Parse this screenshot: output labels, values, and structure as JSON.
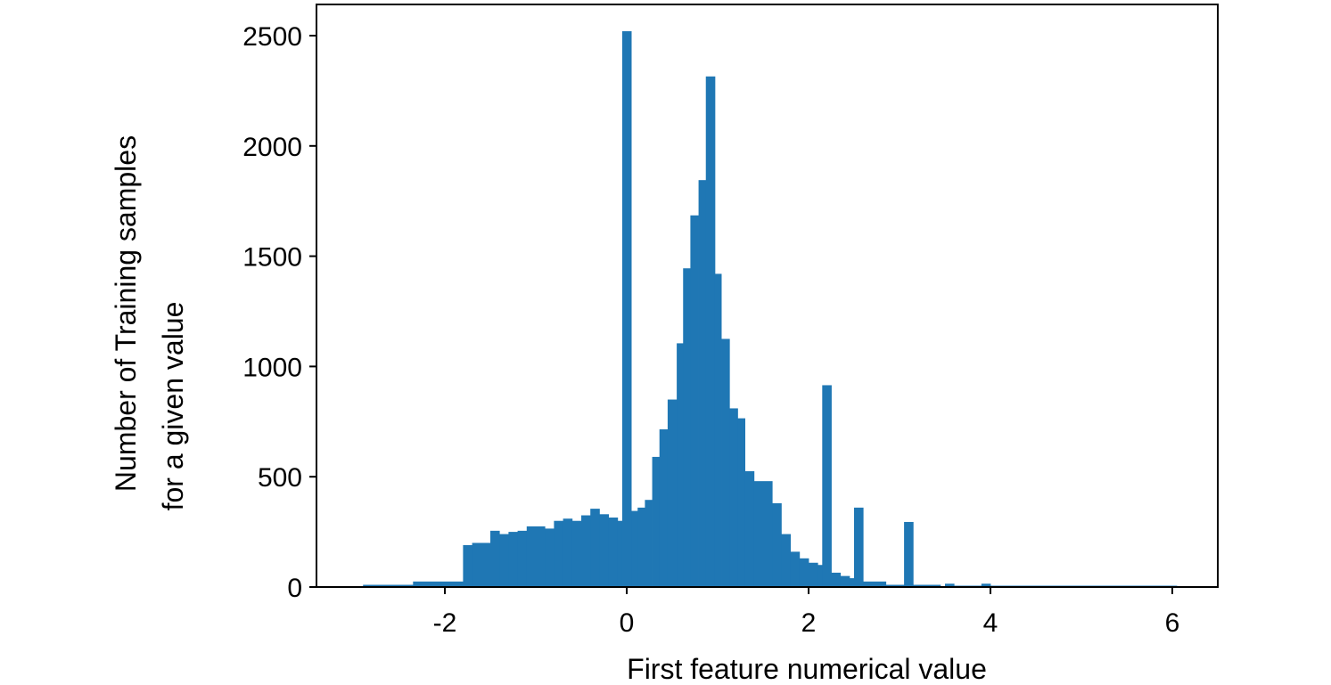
{
  "chart_data": {
    "type": "bar",
    "title": "",
    "xlabel": "First feature numerical value",
    "ylabel_lines": [
      "Number of Training samples",
      "for a given value"
    ],
    "xlim": [
      -3.4,
      6.5
    ],
    "ylim": [
      0,
      2500
    ],
    "xticks": [
      "-2",
      "0",
      "2",
      "4",
      "6"
    ],
    "xtick_values": [
      -2,
      0,
      2,
      4,
      6
    ],
    "yticks": [
      "0",
      "500",
      "1000",
      "1500",
      "2000",
      "2500"
    ],
    "ytick_values": [
      0,
      500,
      1000,
      1500,
      2000,
      2500
    ],
    "grid": false,
    "bar_color": "#1f77b4",
    "bins": [
      {
        "x0": -2.9,
        "x1": -2.35,
        "value": 10
      },
      {
        "x0": -2.35,
        "x1": -1.8,
        "value": 25
      },
      {
        "x0": -1.8,
        "x1": -1.7,
        "value": 190
      },
      {
        "x0": -1.7,
        "x1": -1.5,
        "value": 200
      },
      {
        "x0": -1.5,
        "x1": -1.4,
        "value": 255
      },
      {
        "x0": -1.4,
        "x1": -1.3,
        "value": 240
      },
      {
        "x0": -1.3,
        "x1": -1.2,
        "value": 250
      },
      {
        "x0": -1.2,
        "x1": -1.1,
        "value": 255
      },
      {
        "x0": -1.1,
        "x1": -0.9,
        "value": 275
      },
      {
        "x0": -0.9,
        "x1": -0.8,
        "value": 265
      },
      {
        "x0": -0.8,
        "x1": -0.7,
        "value": 300
      },
      {
        "x0": -0.7,
        "x1": -0.6,
        "value": 310
      },
      {
        "x0": -0.6,
        "x1": -0.5,
        "value": 300
      },
      {
        "x0": -0.5,
        "x1": -0.4,
        "value": 325
      },
      {
        "x0": -0.4,
        "x1": -0.3,
        "value": 355
      },
      {
        "x0": -0.3,
        "x1": -0.2,
        "value": 330
      },
      {
        "x0": -0.2,
        "x1": -0.1,
        "value": 315
      },
      {
        "x0": -0.1,
        "x1": -0.05,
        "value": 300
      },
      {
        "x0": -0.05,
        "x1": 0.05,
        "value": 2520
      },
      {
        "x0": 0.05,
        "x1": 0.12,
        "value": 345
      },
      {
        "x0": 0.12,
        "x1": 0.2,
        "value": 360
      },
      {
        "x0": 0.2,
        "x1": 0.28,
        "value": 395
      },
      {
        "x0": 0.28,
        "x1": 0.36,
        "value": 590
      },
      {
        "x0": 0.36,
        "x1": 0.45,
        "value": 715
      },
      {
        "x0": 0.45,
        "x1": 0.55,
        "value": 850
      },
      {
        "x0": 0.55,
        "x1": 0.62,
        "value": 1105
      },
      {
        "x0": 0.62,
        "x1": 0.7,
        "value": 1445
      },
      {
        "x0": 0.7,
        "x1": 0.79,
        "value": 1685
      },
      {
        "x0": 0.79,
        "x1": 0.87,
        "value": 1845
      },
      {
        "x0": 0.87,
        "x1": 0.97,
        "value": 2315
      },
      {
        "x0": 0.97,
        "x1": 1.04,
        "value": 1420
      },
      {
        "x0": 1.04,
        "x1": 1.13,
        "value": 1125
      },
      {
        "x0": 1.13,
        "x1": 1.22,
        "value": 810
      },
      {
        "x0": 1.22,
        "x1": 1.3,
        "value": 765
      },
      {
        "x0": 1.3,
        "x1": 1.4,
        "value": 525
      },
      {
        "x0": 1.4,
        "x1": 1.6,
        "value": 480
      },
      {
        "x0": 1.6,
        "x1": 1.7,
        "value": 380
      },
      {
        "x0": 1.7,
        "x1": 1.8,
        "value": 240
      },
      {
        "x0": 1.8,
        "x1": 1.9,
        "value": 160
      },
      {
        "x0": 1.9,
        "x1": 2.0,
        "value": 130
      },
      {
        "x0": 2.0,
        "x1": 2.1,
        "value": 110
      },
      {
        "x0": 2.1,
        "x1": 2.15,
        "value": 100
      },
      {
        "x0": 2.15,
        "x1": 2.25,
        "value": 915
      },
      {
        "x0": 2.25,
        "x1": 2.35,
        "value": 65
      },
      {
        "x0": 2.35,
        "x1": 2.45,
        "value": 50
      },
      {
        "x0": 2.45,
        "x1": 2.5,
        "value": 40
      },
      {
        "x0": 2.5,
        "x1": 2.6,
        "value": 360
      },
      {
        "x0": 2.6,
        "x1": 2.85,
        "value": 25
      },
      {
        "x0": 2.85,
        "x1": 3.05,
        "value": 10
      },
      {
        "x0": 3.05,
        "x1": 3.15,
        "value": 295
      },
      {
        "x0": 3.15,
        "x1": 3.45,
        "value": 10
      },
      {
        "x0": 3.5,
        "x1": 3.6,
        "value": 15
      },
      {
        "x0": 3.6,
        "x1": 3.9,
        "value": 5
      },
      {
        "x0": 3.9,
        "x1": 4.0,
        "value": 15
      },
      {
        "x0": 4.0,
        "x1": 6.05,
        "value": 3
      }
    ]
  }
}
